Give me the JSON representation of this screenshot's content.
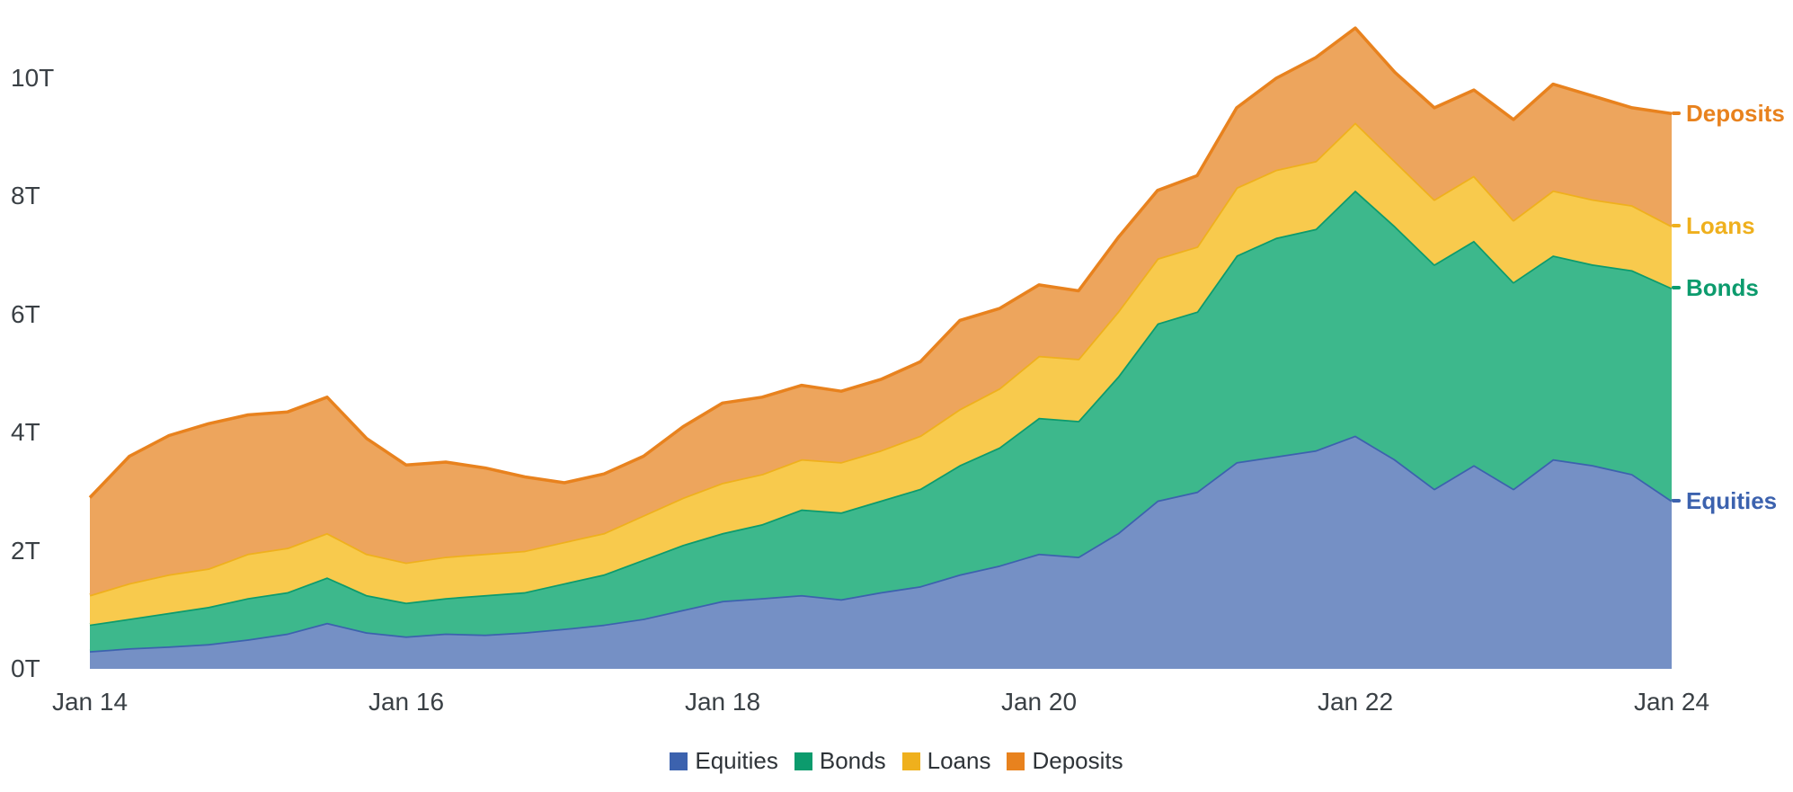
{
  "chart_data": {
    "type": "area",
    "stacked": true,
    "title": "",
    "xlabel": "",
    "ylabel": "",
    "unit": "T",
    "grid": false,
    "legend_position": "bottom-center",
    "xlim": [
      2014,
      2024
    ],
    "ylim": [
      0,
      11.1
    ],
    "x_tick_labels": [
      "Jan 14",
      "Jan 16",
      "Jan 18",
      "Jan 20",
      "Jan 22",
      "Jan 24"
    ],
    "x_tick_years": [
      2014,
      2016,
      2018,
      2020,
      2022,
      2024
    ],
    "y_tick_labels": [
      "0T",
      "2T",
      "4T",
      "6T",
      "8T",
      "10T"
    ],
    "y_tick_values": [
      0,
      2,
      4,
      6,
      8,
      10
    ],
    "x": [
      2014,
      2014.25,
      2014.5,
      2014.75,
      2015,
      2015.25,
      2015.5,
      2015.75,
      2016,
      2016.25,
      2016.5,
      2016.75,
      2017,
      2017.25,
      2017.5,
      2017.75,
      2018,
      2018.25,
      2018.5,
      2018.75,
      2019,
      2019.25,
      2019.5,
      2019.75,
      2020,
      2020.25,
      2020.5,
      2020.75,
      2021,
      2021.25,
      2021.5,
      2021.75,
      2022,
      2022.25,
      2022.5,
      2022.75,
      2023,
      2023.25,
      2023.5,
      2023.75,
      2024
    ],
    "series": [
      {
        "name": "Equities",
        "fill": "#7590c5",
        "stroke": "#3c62ae",
        "values": [
          0.3,
          0.35,
          0.38,
          0.42,
          0.5,
          0.6,
          0.78,
          0.62,
          0.55,
          0.6,
          0.58,
          0.62,
          0.68,
          0.75,
          0.85,
          1.0,
          1.15,
          1.2,
          1.25,
          1.18,
          1.3,
          1.4,
          1.6,
          1.75,
          1.95,
          1.9,
          2.3,
          2.85,
          3.0,
          3.5,
          3.6,
          3.7,
          3.95,
          3.55,
          3.05,
          3.45,
          3.05,
          3.55,
          3.45,
          3.3,
          2.85
        ]
      },
      {
        "name": "Bonds",
        "fill": "#3db88c",
        "stroke": "#0c9b6d",
        "values": [
          0.45,
          0.5,
          0.57,
          0.63,
          0.7,
          0.7,
          0.77,
          0.63,
          0.57,
          0.6,
          0.67,
          0.68,
          0.77,
          0.85,
          1.0,
          1.1,
          1.15,
          1.25,
          1.45,
          1.47,
          1.55,
          1.65,
          1.85,
          2.0,
          2.3,
          2.3,
          2.65,
          3.0,
          3.05,
          3.5,
          3.7,
          3.75,
          4.15,
          3.95,
          3.8,
          3.8,
          3.5,
          3.45,
          3.4,
          3.45,
          3.6
        ]
      },
      {
        "name": "Loans",
        "fill": "#f8ca4d",
        "stroke": "#efb01d",
        "values": [
          0.5,
          0.6,
          0.65,
          0.65,
          0.75,
          0.75,
          0.75,
          0.7,
          0.68,
          0.7,
          0.7,
          0.7,
          0.7,
          0.7,
          0.75,
          0.8,
          0.85,
          0.85,
          0.85,
          0.85,
          0.85,
          0.9,
          0.95,
          1.0,
          1.05,
          1.05,
          1.1,
          1.1,
          1.1,
          1.15,
          1.15,
          1.15,
          1.15,
          1.1,
          1.1,
          1.1,
          1.05,
          1.1,
          1.1,
          1.1,
          1.05
        ]
      },
      {
        "name": "Deposits",
        "fill": "#eda55d",
        "stroke": "#e8821e",
        "values": [
          1.65,
          2.15,
          2.35,
          2.45,
          2.35,
          2.3,
          2.3,
          1.95,
          1.65,
          1.6,
          1.45,
          1.25,
          1.0,
          1.0,
          1.0,
          1.2,
          1.35,
          1.3,
          1.25,
          1.2,
          1.2,
          1.25,
          1.5,
          1.35,
          1.2,
          1.15,
          1.25,
          1.15,
          1.2,
          1.35,
          1.55,
          1.75,
          1.6,
          1.5,
          1.55,
          1.45,
          1.7,
          1.8,
          1.75,
          1.65,
          1.9
        ]
      }
    ],
    "legend": [
      "Equities",
      "Bonds",
      "Loans",
      "Deposits"
    ],
    "right_labels": [
      {
        "text": "Deposits",
        "color": "#e8821e"
      },
      {
        "text": "Loans",
        "color": "#efb01d"
      },
      {
        "text": "Bonds",
        "color": "#0c9b6d"
      },
      {
        "text": "Equities",
        "color": "#3c62ae"
      }
    ]
  }
}
